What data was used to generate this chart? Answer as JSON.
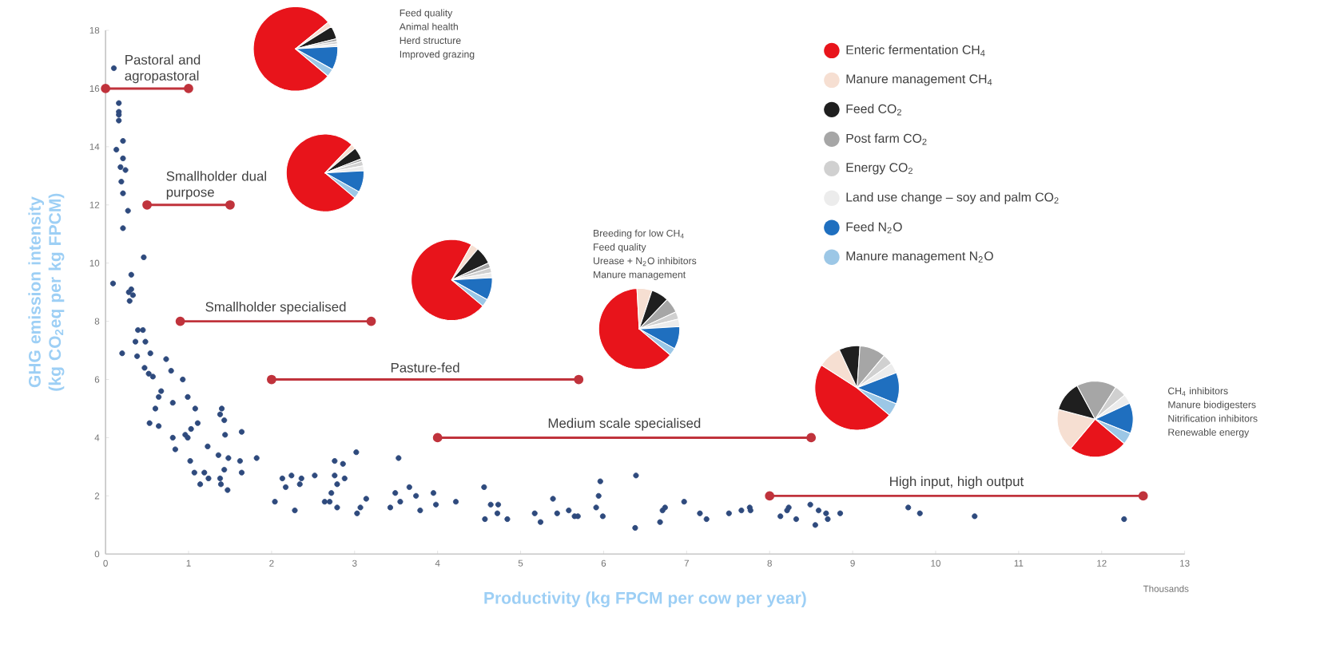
{
  "chart_data": [
    {
      "type": "scatter",
      "xlabel": "Productivity (kg FPCM per cow per year)",
      "ylabel": "GHG emission intensity (kg CO$_{2}$eq per kg FPCM)",
      "xlim": [
        0,
        13
      ],
      "ylim": [
        0,
        18
      ],
      "xticks": [
        0,
        1,
        2,
        3,
        4,
        5,
        6,
        7,
        8,
        9,
        10,
        11,
        12,
        13
      ],
      "yticks": [
        0,
        2,
        4,
        6,
        8,
        10,
        12,
        14,
        16,
        18
      ],
      "annotations": [
        "Thousands"
      ],
      "series": [
        {
          "type": "scatter",
          "color": "#2e4a7d",
          "marker": "circle",
          "x": [
            0.1,
            0.16,
            0.16,
            0.16,
            0.16,
            0.21,
            0.13,
            0.21,
            0.18,
            0.24,
            0.19,
            0.21,
            0.27,
            0.21,
            0.46,
            0.31,
            0.09,
            0.31,
            0.28,
            0.33,
            0.29,
            0.39,
            0.45,
            0.36,
            0.48,
            0.2,
            0.38,
            0.54,
            0.73,
            0.47,
            0.52,
            0.57,
            0.79,
            0.93,
            0.67,
            0.64,
            0.6,
            0.81,
            0.99,
            1.08,
            1.4,
            1.38,
            1.43,
            0.53,
            0.64,
            1.11,
            1.03,
            0.96,
            0.81,
            0.99,
            1.44,
            1.64,
            1.23,
            0.84,
            1.36,
            1.48,
            1.62,
            1.82,
            1.02,
            1.07,
            1.19,
            1.24,
            1.64,
            1.43,
            1.38,
            1.47,
            1.39,
            1.14,
            2.13,
            2.24,
            2.36,
            2.17,
            2.34,
            2.52,
            2.04,
            2.28,
            2.76,
            2.86,
            2.76,
            2.88,
            2.79,
            2.72,
            2.64,
            2.7,
            2.79,
            3.02,
            3.14,
            3.07,
            3.03,
            3.53,
            3.43,
            3.49,
            3.55,
            3.66,
            3.74,
            3.79,
            3.95,
            3.98,
            4.22,
            4.56,
            4.64,
            4.73,
            4.72,
            4.57,
            4.84,
            5.17,
            5.24,
            5.39,
            5.44,
            5.58,
            5.65,
            5.69,
            5.96,
            5.94,
            5.91,
            5.99,
            6.39,
            6.38,
            6.71,
            6.74,
            6.68,
            6.97,
            7.16,
            7.24,
            7.51,
            7.66,
            7.76,
            7.77,
            8.13,
            8.21,
            8.23,
            8.32,
            8.49,
            8.59,
            8.68,
            8.7,
            8.55,
            8.85,
            9.67,
            9.81,
            10.47,
            12.27
          ],
          "values": [
            16.7,
            15.5,
            15.2,
            15.1,
            14.9,
            14.2,
            13.9,
            13.6,
            13.3,
            13.2,
            12.8,
            12.4,
            11.8,
            11.2,
            10.2,
            9.6,
            9.3,
            9.1,
            9.0,
            8.9,
            8.7,
            7.7,
            7.7,
            7.3,
            7.3,
            6.9,
            6.8,
            6.9,
            6.7,
            6.4,
            6.2,
            6.1,
            6.3,
            6.0,
            5.6,
            5.4,
            5.0,
            5.2,
            5.4,
            5.0,
            5.0,
            4.8,
            4.6,
            4.5,
            4.4,
            4.5,
            4.3,
            4.1,
            4.0,
            4.0,
            4.1,
            4.2,
            3.7,
            3.6,
            3.4,
            3.3,
            3.2,
            3.3,
            3.2,
            2.8,
            2.8,
            2.6,
            2.8,
            2.9,
            2.6,
            2.2,
            2.4,
            2.4,
            2.6,
            2.7,
            2.6,
            2.3,
            2.4,
            2.7,
            1.8,
            1.5,
            3.2,
            3.1,
            2.7,
            2.6,
            2.4,
            2.1,
            1.8,
            1.8,
            1.6,
            3.5,
            1.9,
            1.6,
            1.4,
            3.3,
            1.6,
            2.1,
            1.8,
            2.3,
            2.0,
            1.5,
            2.1,
            1.7,
            1.8,
            2.3,
            1.7,
            1.7,
            1.4,
            1.2,
            1.2,
            1.4,
            1.1,
            1.9,
            1.4,
            1.5,
            1.3,
            1.3,
            2.5,
            2.0,
            1.6,
            1.3,
            2.7,
            0.9,
            1.5,
            1.6,
            1.1,
            1.8,
            1.4,
            1.2,
            1.4,
            1.5,
            1.6,
            1.5,
            1.3,
            1.5,
            1.6,
            1.2,
            1.7,
            1.5,
            1.4,
            1.2,
            1.0,
            1.4,
            1.6,
            1.4,
            1.3,
            1.2
          ]
        },
        {
          "type": "line",
          "name": "Pastoral and agropastoral",
          "color": "#c0333c",
          "marker": "circle",
          "x": [
            0,
            1
          ],
          "values": [
            16,
            16
          ]
        },
        {
          "type": "line",
          "name": "Smallholder dual purpose",
          "color": "#c0333c",
          "marker": "circle",
          "x": [
            0.5,
            1.5
          ],
          "values": [
            12,
            12
          ]
        },
        {
          "type": "line",
          "name": "Smallholder specialised",
          "color": "#c0333c",
          "marker": "circle",
          "x": [
            0.9,
            3.2
          ],
          "values": [
            8,
            8
          ]
        },
        {
          "type": "line",
          "name": "Pasture-fed",
          "color": "#c0333c",
          "marker": "circle",
          "x": [
            2,
            5.7
          ],
          "values": [
            6,
            6
          ]
        },
        {
          "type": "line",
          "name": "Medium scale specialised",
          "color": "#c0333c",
          "marker": "circle",
          "x": [
            4,
            8.5
          ],
          "values": [
            4,
            4
          ]
        },
        {
          "type": "line",
          "name": "High input, high output",
          "color": "#c0333c",
          "marker": "circle",
          "x": [
            8,
            12.5
          ],
          "values": [
            2,
            2
          ]
        }
      ]
    },
    {
      "type": "pie",
      "legend": "right",
      "categories": [
        "Enteric fermentation CH$_{4}$",
        "Manure management CH$_{4}$",
        "Feed CO$_{2}$",
        "Post farm CO$_{2}$",
        "Energy CO$_{2}$",
        "Land use change – soy and palm CO$_{2}$",
        "Feed N$_{2}$O",
        "Manure management N$_{2}$O"
      ],
      "values": [
        78,
        2,
        5,
        1,
        1,
        1,
        9,
        3
      ],
      "colors": [
        "#e8141b",
        "#f6dfd2",
        "#1f1f1f",
        "#a6a6a6",
        "#d0d0d0",
        "#ececec",
        "#1f6fbf",
        "#9cc7e6"
      ],
      "annotations": [
        "Feed quality",
        "Animal health",
        "Herd structure",
        "Improved grazing"
      ]
    },
    {
      "type": "pie",
      "categories": [
        null,
        null,
        null,
        null,
        null,
        null,
        null,
        null
      ],
      "values": [
        76,
        2,
        5,
        1,
        2,
        2,
        9,
        3
      ],
      "colors": [
        "#e8141b",
        "#f6dfd2",
        "#1f1f1f",
        "#a6a6a6",
        "#d0d0d0",
        "#ececec",
        "#1f6fbf",
        "#9cc7e6"
      ]
    },
    {
      "type": "pie",
      "categories": [
        null,
        null,
        null,
        null,
        null,
        null,
        null,
        null
      ],
      "values": [
        72,
        3,
        7,
        2,
        2,
        2,
        9,
        3
      ],
      "colors": [
        "#e8141b",
        "#f6dfd2",
        "#1f1f1f",
        "#a6a6a6",
        "#d0d0d0",
        "#ececec",
        "#1f6fbf",
        "#9cc7e6"
      ]
    },
    {
      "type": "pie",
      "categories": [
        null,
        null,
        null,
        null,
        null,
        null,
        null,
        null
      ],
      "values": [
        63,
        6,
        7,
        6,
        3,
        3,
        9,
        3
      ],
      "colors": [
        "#e8141b",
        "#f6dfd2",
        "#1f1f1f",
        "#a6a6a6",
        "#d0d0d0",
        "#ececec",
        "#1f6fbf",
        "#9cc7e6"
      ],
      "annotations": [
        "Breeding for low CH$_{4}$",
        "Feed quality",
        "Urease + N$_{2}$O inhibitors",
        "Manure management"
      ]
    },
    {
      "type": "pie",
      "categories": [
        null,
        null,
        null,
        null,
        null,
        null,
        null,
        null
      ],
      "values": [
        48,
        9,
        8,
        10,
        4,
        4,
        12,
        5
      ],
      "colors": [
        "#e8141b",
        "#f6dfd2",
        "#1f1f1f",
        "#a6a6a6",
        "#d0d0d0",
        "#ececec",
        "#1f6fbf",
        "#9cc7e6"
      ]
    },
    {
      "type": "pie",
      "categories": [
        null,
        null,
        null,
        null,
        null,
        null,
        null,
        null
      ],
      "values": [
        25,
        18,
        13,
        17,
        5,
        4,
        13,
        5
      ],
      "colors": [
        "#e8141b",
        "#f6dfd2",
        "#1f1f1f",
        "#a6a6a6",
        "#d0d0d0",
        "#ececec",
        "#1f6fbf",
        "#9cc7e6"
      ],
      "annotations": [
        "CH$_{4}$ inhibitors",
        "Manure biodigesters",
        "Nitrification inhibitors",
        "Renewable energy"
      ]
    }
  ]
}
